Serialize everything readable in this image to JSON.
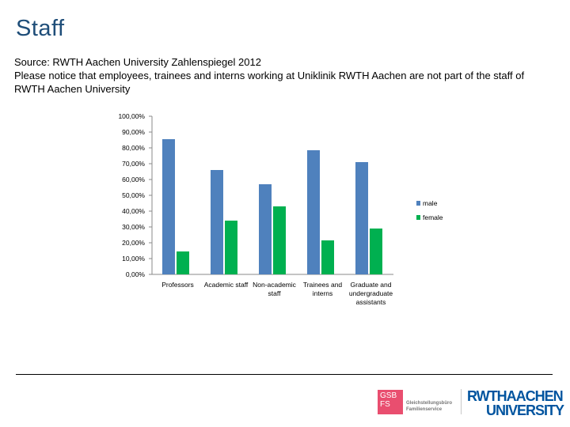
{
  "page": {
    "title": "Staff",
    "source_line": "Source: RWTH Aachen University Zahlenspiegel 2012",
    "notice_line": "Please notice that employees, trainees and interns working at Uniklinik RWTH Aachen are not part of the staff of RWTH Aachen University",
    "title_color": "#1f4e79"
  },
  "chart_data": {
    "type": "bar",
    "title": "",
    "xlabel": "",
    "ylabel": "",
    "categories": [
      "Professors",
      "Academic staff",
      "Non-academic staff",
      "Trainees and interns",
      "Graduate and undergraduate assistants"
    ],
    "category_label_lines": [
      [
        "Professors"
      ],
      [
        "Academic staff"
      ],
      [
        "Non-academic",
        "staff"
      ],
      [
        "Trainees and",
        "interns"
      ],
      [
        "Graduate and",
        "undergraduate",
        "assistants"
      ]
    ],
    "series": [
      {
        "name": "male",
        "color": "#4f81bd",
        "values": [
          85.5,
          66,
          57,
          78.5,
          71
        ]
      },
      {
        "name": "female",
        "color": "#00b050",
        "values": [
          14.5,
          34,
          43,
          21.5,
          29
        ]
      }
    ],
    "ylim": [
      0,
      100
    ],
    "yticks": [
      "0,00%",
      "10,00%",
      "20,00%",
      "30,00%",
      "40,00%",
      "50,00%",
      "60,00%",
      "70,00%",
      "80,00%",
      "90,00%",
      "100,00%"
    ],
    "grid": false,
    "legend_position": "right"
  },
  "logos": {
    "gsb_mark_lines": [
      "GSB",
      "FS"
    ],
    "gsb_text_lines": [
      "Gleichstellungsbüro",
      "Familienservice"
    ],
    "rwth_line1": "RWTHAACHEN",
    "rwth_line2": "UNIVERSITY",
    "rwth_color": "#00549f",
    "gsb_color": "#e94e6f"
  }
}
